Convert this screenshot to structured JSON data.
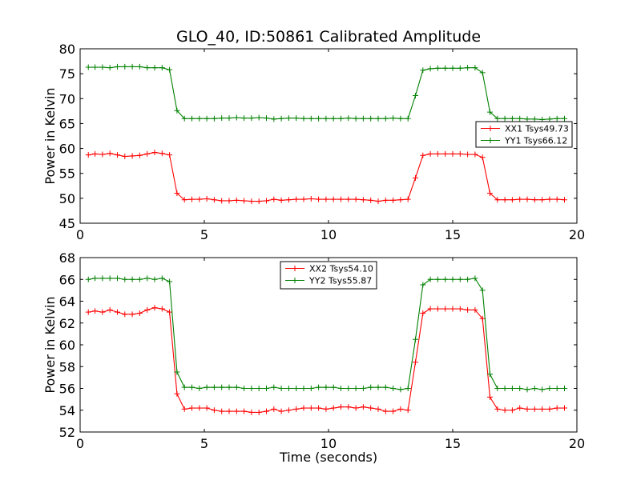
{
  "title": "GLO_40, ID:50861 Calibrated Amplitude",
  "xlabel": "Time (seconds)",
  "chart_data": [
    {
      "type": "line",
      "ylabel": "Power in Kelvin",
      "xlim": [
        0,
        20
      ],
      "ylim": [
        45,
        80
      ],
      "xticks": [
        "0",
        "5",
        "10",
        "15",
        "20"
      ],
      "yticks": [
        "45",
        "50",
        "55",
        "60",
        "65",
        "70",
        "75",
        "80"
      ],
      "grid": false,
      "legend_position": "center-right",
      "x": [
        0.33,
        0.6,
        0.9,
        1.2,
        1.5,
        1.8,
        2.1,
        2.4,
        2.7,
        3.0,
        3.3,
        3.6,
        3.9,
        4.2,
        4.5,
        4.8,
        5.1,
        5.4,
        5.7,
        6.0,
        6.3,
        6.6,
        6.9,
        7.2,
        7.5,
        7.8,
        8.1,
        8.4,
        8.7,
        9.0,
        9.3,
        9.6,
        9.9,
        10.2,
        10.5,
        10.8,
        11.1,
        11.4,
        11.7,
        12.0,
        12.3,
        12.6,
        12.9,
        13.2,
        13.5,
        13.8,
        14.1,
        14.4,
        14.7,
        15.0,
        15.3,
        15.6,
        15.9,
        16.2,
        16.5,
        16.8,
        17.1,
        17.4,
        17.7,
        18.0,
        18.3,
        18.6,
        18.9,
        19.2,
        19.5
      ],
      "series": [
        {
          "name": "XX1 Tsys49.73",
          "color": "#ff0000",
          "values": [
            58.7,
            58.9,
            58.8,
            59.0,
            58.7,
            58.4,
            58.5,
            58.6,
            58.9,
            59.2,
            59.0,
            58.7,
            51.0,
            49.7,
            49.8,
            49.8,
            49.9,
            49.7,
            49.5,
            49.5,
            49.6,
            49.5,
            49.4,
            49.4,
            49.5,
            49.8,
            49.6,
            49.7,
            49.8,
            49.8,
            49.9,
            49.8,
            49.8,
            49.8,
            49.8,
            49.8,
            49.8,
            49.7,
            49.6,
            49.4,
            49.6,
            49.6,
            49.7,
            49.8,
            54.1,
            58.6,
            58.9,
            58.9,
            58.9,
            58.9,
            58.9,
            58.8,
            58.8,
            58.2,
            51.0,
            49.7,
            49.7,
            49.7,
            49.8,
            49.8,
            49.7,
            49.7,
            49.8,
            49.8,
            49.7
          ]
        },
        {
          "name": "YY1 Tsys66.12",
          "color": "#008000",
          "values": [
            76.3,
            76.3,
            76.3,
            76.2,
            76.4,
            76.4,
            76.4,
            76.4,
            76.2,
            76.2,
            76.2,
            75.8,
            67.6,
            66.0,
            66.0,
            66.0,
            66.0,
            66.0,
            66.1,
            66.1,
            66.2,
            66.1,
            66.1,
            66.2,
            66.1,
            65.9,
            66.0,
            66.1,
            66.1,
            66.0,
            66.0,
            66.0,
            66.0,
            66.0,
            66.0,
            66.1,
            66.0,
            66.0,
            66.0,
            66.0,
            66.0,
            66.1,
            66.0,
            66.0,
            70.6,
            75.7,
            76.0,
            76.1,
            76.1,
            76.1,
            76.1,
            76.2,
            76.2,
            75.2,
            67.3,
            66.0,
            66.0,
            66.0,
            66.0,
            65.9,
            65.9,
            65.8,
            65.9,
            66.0,
            66.0
          ]
        }
      ]
    },
    {
      "type": "line",
      "ylabel": "Power in Kelvin",
      "xlim": [
        0,
        20
      ],
      "ylim": [
        52,
        68
      ],
      "xticks": [
        "0",
        "5",
        "10",
        "15",
        "20"
      ],
      "yticks": [
        "52",
        "54",
        "56",
        "58",
        "60",
        "62",
        "64",
        "66",
        "68"
      ],
      "grid": false,
      "legend_position": "upper-center",
      "x": [
        0.33,
        0.6,
        0.9,
        1.2,
        1.5,
        1.8,
        2.1,
        2.4,
        2.7,
        3.0,
        3.3,
        3.6,
        3.9,
        4.2,
        4.5,
        4.8,
        5.1,
        5.4,
        5.7,
        6.0,
        6.3,
        6.6,
        6.9,
        7.2,
        7.5,
        7.8,
        8.1,
        8.4,
        8.7,
        9.0,
        9.3,
        9.6,
        9.9,
        10.2,
        10.5,
        10.8,
        11.1,
        11.4,
        11.7,
        12.0,
        12.3,
        12.6,
        12.9,
        13.2,
        13.5,
        13.8,
        14.1,
        14.4,
        14.7,
        15.0,
        15.3,
        15.6,
        15.9,
        16.2,
        16.5,
        16.8,
        17.1,
        17.4,
        17.7,
        18.0,
        18.3,
        18.6,
        18.9,
        19.2,
        19.5
      ],
      "series": [
        {
          "name": "XX2 Tsys54.10",
          "color": "#ff0000",
          "values": [
            63.0,
            63.1,
            63.0,
            63.2,
            63.0,
            62.8,
            62.8,
            62.9,
            63.2,
            63.4,
            63.3,
            63.0,
            55.5,
            54.1,
            54.2,
            54.2,
            54.2,
            54.0,
            53.9,
            53.9,
            53.9,
            53.9,
            53.8,
            53.8,
            53.9,
            54.1,
            53.9,
            54.0,
            54.1,
            54.2,
            54.2,
            54.2,
            54.1,
            54.2,
            54.3,
            54.3,
            54.2,
            54.3,
            54.2,
            54.1,
            53.9,
            53.9,
            54.1,
            54.0,
            58.4,
            62.9,
            63.3,
            63.3,
            63.3,
            63.3,
            63.3,
            63.2,
            63.2,
            62.4,
            55.2,
            54.1,
            54.0,
            54.0,
            54.2,
            54.1,
            54.1,
            54.1,
            54.1,
            54.2,
            54.2
          ]
        },
        {
          "name": "YY2 Tsys55.87",
          "color": "#008000",
          "values": [
            66.0,
            66.1,
            66.1,
            66.1,
            66.1,
            66.0,
            66.0,
            66.0,
            66.1,
            66.0,
            66.1,
            65.8,
            57.5,
            56.1,
            56.1,
            56.0,
            56.1,
            56.1,
            56.1,
            56.1,
            56.1,
            56.0,
            56.0,
            56.0,
            56.0,
            56.1,
            56.0,
            56.0,
            56.0,
            56.0,
            56.0,
            56.1,
            56.1,
            56.1,
            56.0,
            56.0,
            56.0,
            56.0,
            56.1,
            56.1,
            56.1,
            56.0,
            55.9,
            56.0,
            60.5,
            65.5,
            66.0,
            66.0,
            66.0,
            66.0,
            66.0,
            66.0,
            66.1,
            65.0,
            57.3,
            56.0,
            56.0,
            56.0,
            56.0,
            55.9,
            56.0,
            55.9,
            56.0,
            56.0,
            56.0
          ]
        }
      ]
    }
  ]
}
